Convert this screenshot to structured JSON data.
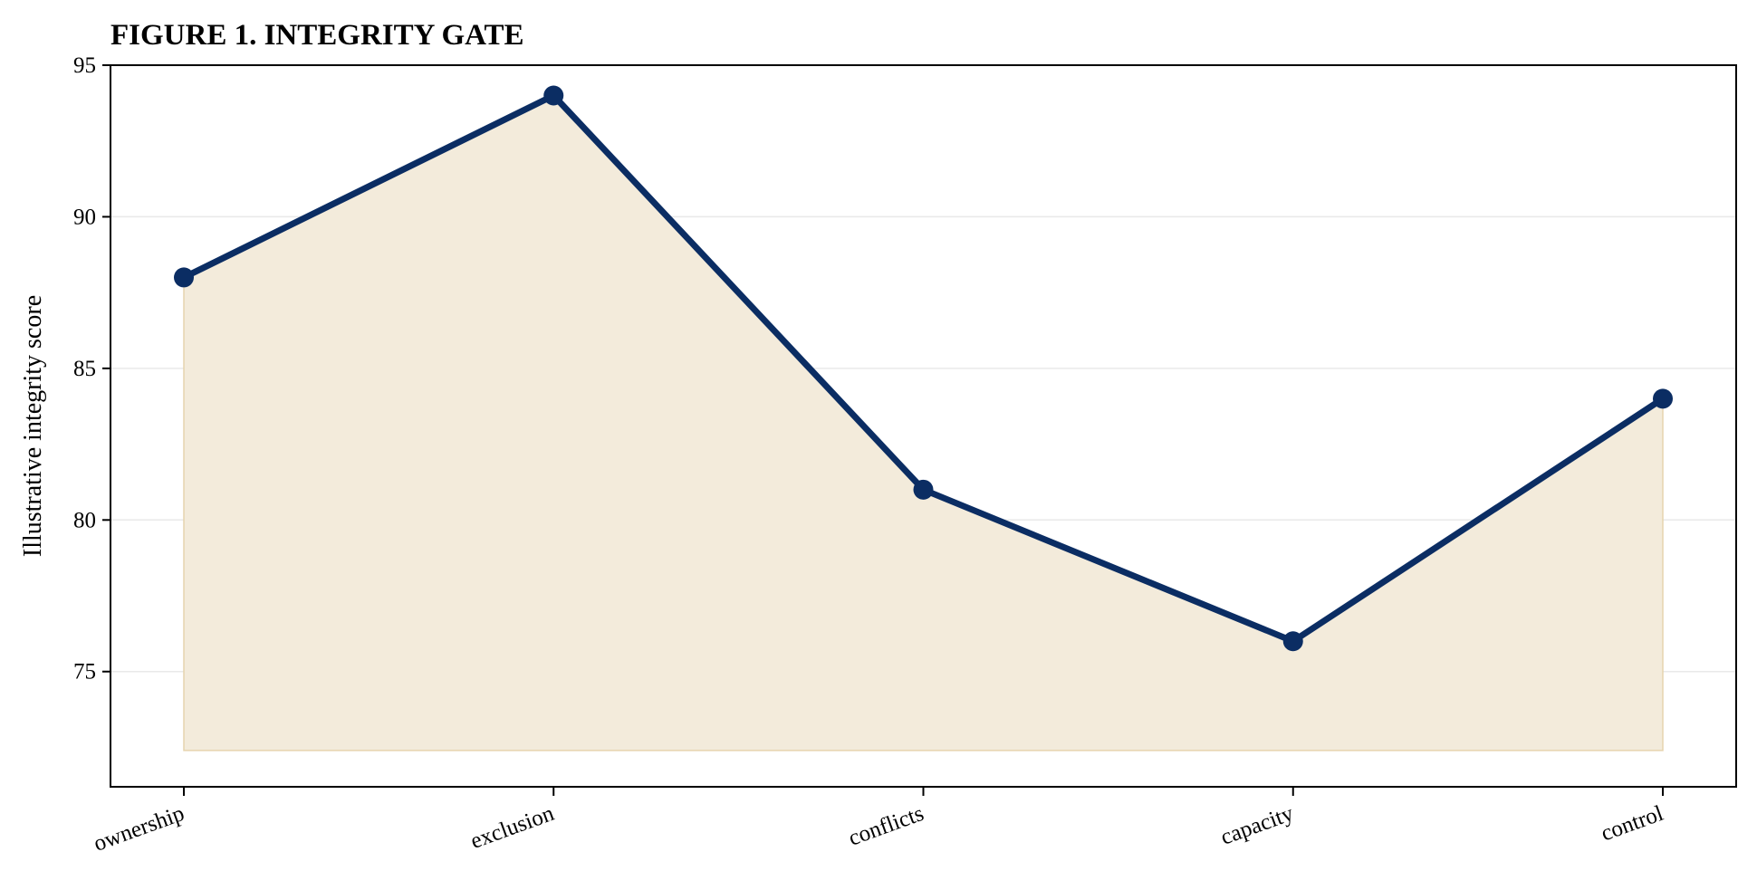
{
  "chart_data": {
    "type": "area",
    "title": "FIGURE 1. INTEGRITY GATE",
    "xlabel": "",
    "ylabel": "Illustrative integrity score",
    "categories": [
      "ownership",
      "exclusion",
      "conflicts",
      "capacity",
      "control"
    ],
    "values": [
      88,
      94,
      81,
      76,
      84
    ],
    "ylim": [
      71.2,
      95
    ],
    "fill_baseline": 72.4,
    "yticks": [
      75,
      80,
      85,
      90,
      95
    ],
    "grid": "horizontal",
    "legend": "none",
    "colors": {
      "line": "#0b2d63",
      "marker": "#0b2d63",
      "fill": "#f3ebdb",
      "fill_edge": "#e6d4ae",
      "grid": "#e9e9e9",
      "axis": "#000000"
    }
  }
}
